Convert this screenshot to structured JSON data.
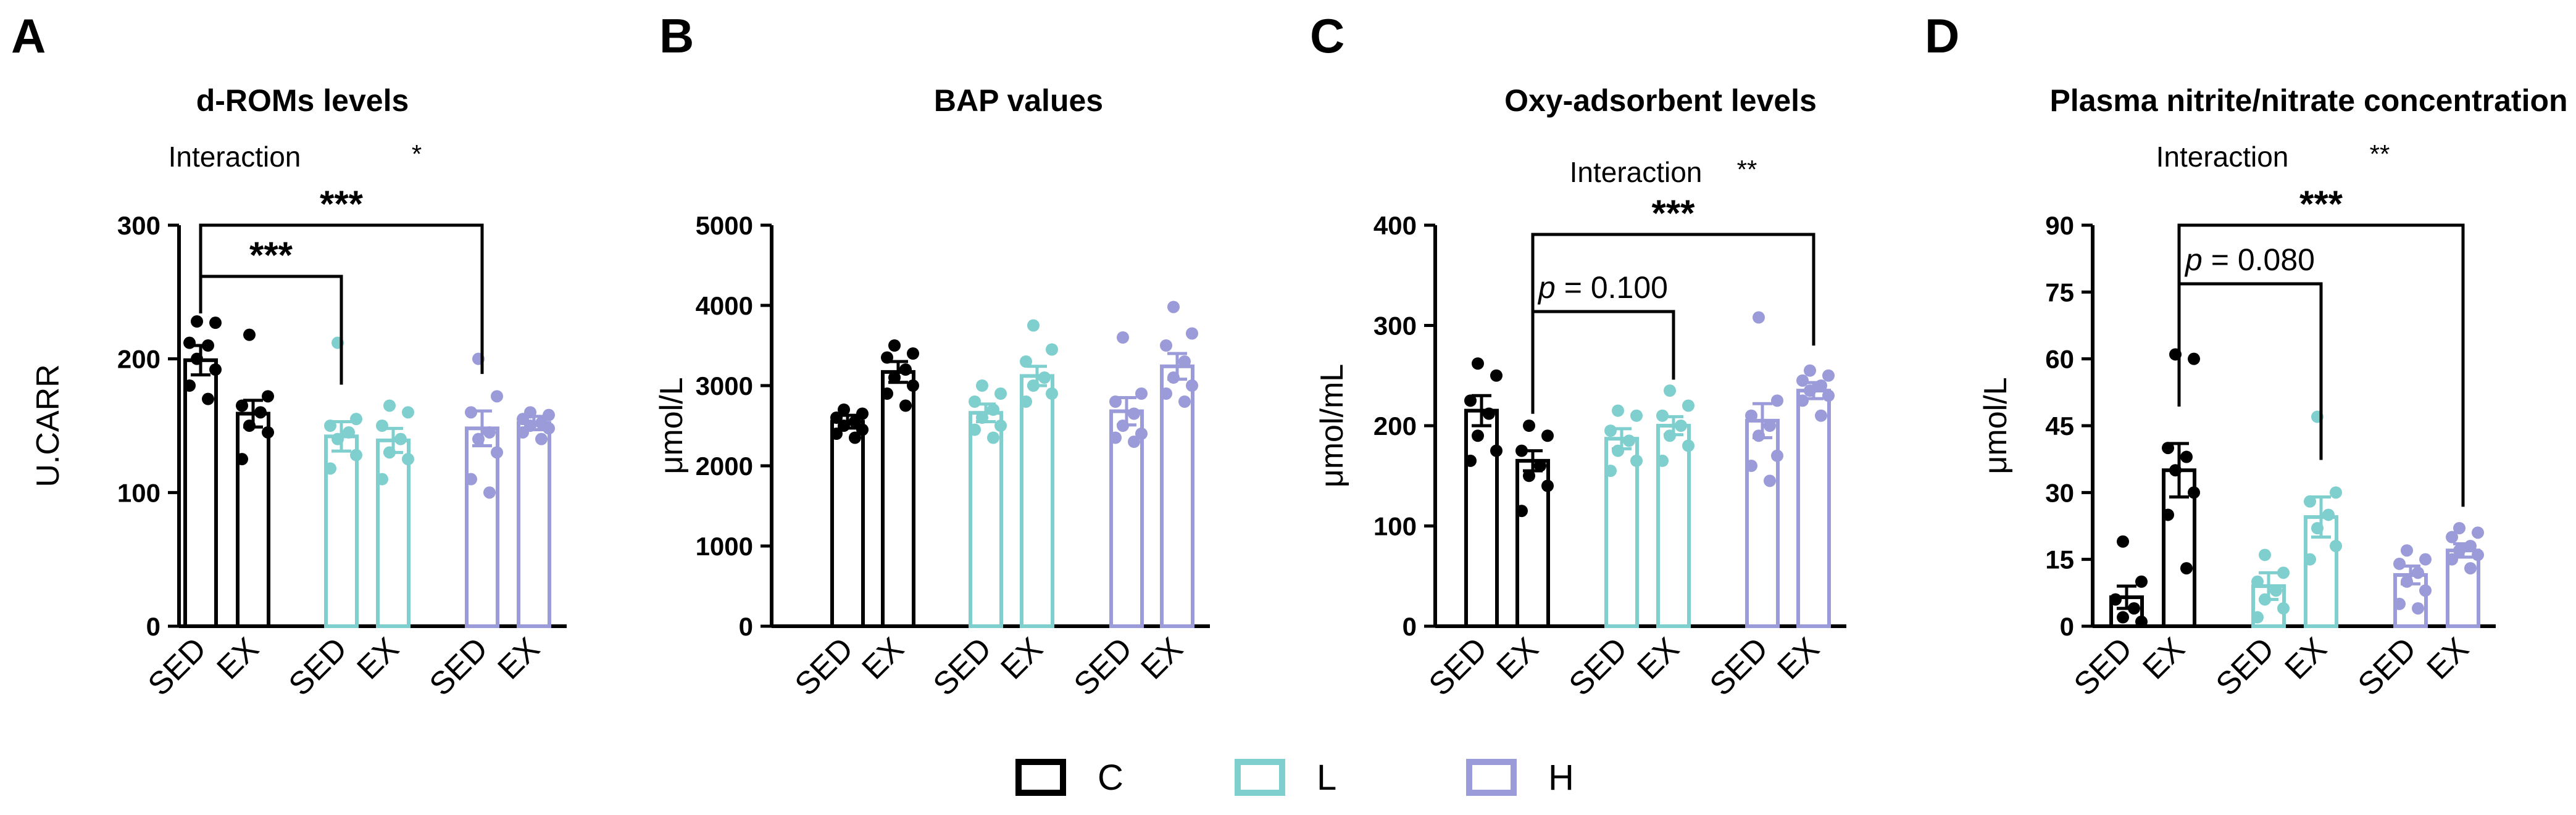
{
  "colors": {
    "C": "#000000",
    "L": "#7fcfcf",
    "H": "#9b9bd9"
  },
  "legend": [
    {
      "key": "C",
      "label": "C"
    },
    {
      "key": "L",
      "label": "L"
    },
    {
      "key": "H",
      "label": "H"
    }
  ],
  "panel_letters": [
    "A",
    "B",
    "C",
    "D"
  ],
  "chart_data": [
    {
      "type": "bar",
      "panel": "A",
      "title": "d-ROMs levels",
      "ylabel": "U.CARR",
      "ylim": [
        0,
        300
      ],
      "yticks": [
        0,
        100,
        200,
        300
      ],
      "interaction": {
        "label": "Interaction",
        "stars": "*"
      },
      "categories": [
        "SED",
        "EX",
        "SED",
        "EX",
        "SED",
        "EX"
      ],
      "groups": [
        "C",
        "C",
        "L",
        "L",
        "H",
        "H"
      ],
      "means": [
        199,
        159,
        142,
        139,
        148,
        152
      ],
      "sem": [
        11,
        10,
        11,
        9,
        13,
        5
      ],
      "points": [
        [
          228,
          227,
          212,
          210,
          200,
          192,
          180,
          170
        ],
        [
          218,
          172,
          165,
          160,
          150,
          145,
          125
        ],
        [
          212,
          155,
          150,
          145,
          140,
          128,
          118
        ],
        [
          165,
          160,
          150,
          140,
          130,
          125,
          110
        ],
        [
          200,
          172,
          160,
          145,
          140,
          130,
          110,
          100
        ],
        [
          160,
          158,
          155,
          152,
          150,
          148,
          145,
          140
        ]
      ],
      "brackets": [
        {
          "from": 0,
          "to": 2,
          "label": "***"
        },
        {
          "from": 0,
          "to": 4,
          "label": "***"
        }
      ]
    },
    {
      "type": "bar",
      "panel": "B",
      "title": "BAP values",
      "ylabel": "μmol/L",
      "ylim": [
        0,
        5000
      ],
      "yticks": [
        0,
        1000,
        2000,
        3000,
        4000,
        5000
      ],
      "categories": [
        "SED",
        "EX",
        "SED",
        "EX",
        "SED",
        "EX"
      ],
      "groups": [
        "C",
        "C",
        "L",
        "L",
        "H",
        "H"
      ],
      "means": [
        2550,
        3170,
        2660,
        3120,
        2680,
        3240
      ],
      "sem": [
        80,
        130,
        110,
        120,
        170,
        160
      ],
      "points": [
        [
          2700,
          2650,
          2600,
          2550,
          2500,
          2450,
          2400,
          2350
        ],
        [
          3500,
          3400,
          3350,
          3200,
          3100,
          3000,
          2900,
          2750
        ],
        [
          3000,
          2900,
          2800,
          2700,
          2600,
          2500,
          2450,
          2350
        ],
        [
          3750,
          3450,
          3300,
          3100,
          3000,
          2900,
          2800
        ],
        [
          3600,
          2900,
          2800,
          2650,
          2500,
          2400,
          2350,
          2300
        ],
        [
          3980,
          3650,
          3500,
          3300,
          3100,
          3000,
          2900,
          2800
        ]
      ],
      "brackets": []
    },
    {
      "type": "bar",
      "panel": "C",
      "title": "Oxy-adsorbent levels",
      "ylabel": "μmol/mL",
      "ylim": [
        0,
        400
      ],
      "yticks": [
        0,
        100,
        200,
        300,
        400
      ],
      "interaction": {
        "label": "Interaction",
        "stars": "**"
      },
      "categories": [
        "SED",
        "EX",
        "SED",
        "EX",
        "SED",
        "EX"
      ],
      "groups": [
        "C",
        "C",
        "L",
        "L",
        "H",
        "H"
      ],
      "means": [
        215,
        165,
        187,
        200,
        205,
        235
      ],
      "sem": [
        15,
        10,
        10,
        9,
        17,
        8
      ],
      "points": [
        [
          262,
          250,
          225,
          212,
          190,
          175,
          165
        ],
        [
          200,
          190,
          175,
          160,
          150,
          140,
          115
        ],
        [
          215,
          210,
          195,
          185,
          175,
          165,
          155
        ],
        [
          235,
          220,
          210,
          200,
          190,
          180,
          165
        ],
        [
          308,
          225,
          210,
          200,
          190,
          170,
          160,
          145
        ],
        [
          255,
          250,
          245,
          240,
          235,
          230,
          225,
          210
        ]
      ],
      "brackets": [
        {
          "from": 1,
          "to": 3,
          "label": "p = 0.100",
          "italic_p": true
        },
        {
          "from": 1,
          "to": 5,
          "label": "***"
        }
      ]
    },
    {
      "type": "bar",
      "panel": "D",
      "title": "Plasma nitrite/nitrate concentration",
      "ylabel": "μmol/L",
      "ylim": [
        0,
        90
      ],
      "yticks": [
        0,
        15,
        30,
        45,
        60,
        75,
        90
      ],
      "interaction": {
        "label": "Interaction",
        "stars": "**"
      },
      "categories": [
        "SED",
        "EX",
        "SED",
        "EX",
        "SED",
        "EX"
      ],
      "groups": [
        "C",
        "C",
        "L",
        "L",
        "H",
        "H"
      ],
      "means": [
        6.5,
        35,
        9,
        24.5,
        11.5,
        17
      ],
      "sem": [
        2.5,
        6,
        3,
        4.5,
        2,
        1.5
      ],
      "points": [
        [
          19,
          10,
          6,
          4,
          2,
          1
        ],
        [
          61,
          60,
          40,
          38,
          35,
          30,
          25,
          13
        ],
        [
          16,
          12,
          10,
          8,
          6,
          4,
          2
        ],
        [
          47,
          30,
          28,
          25,
          22,
          18,
          15
        ],
        [
          17,
          15,
          14,
          12,
          10,
          8,
          5,
          4
        ],
        [
          22,
          21,
          20,
          18,
          17,
          16,
          15,
          13
        ]
      ],
      "brackets": [
        {
          "from": 1,
          "to": 3,
          "label": "p = 0.080",
          "italic_p": true
        },
        {
          "from": 1,
          "to": 5,
          "label": "***"
        }
      ]
    }
  ]
}
